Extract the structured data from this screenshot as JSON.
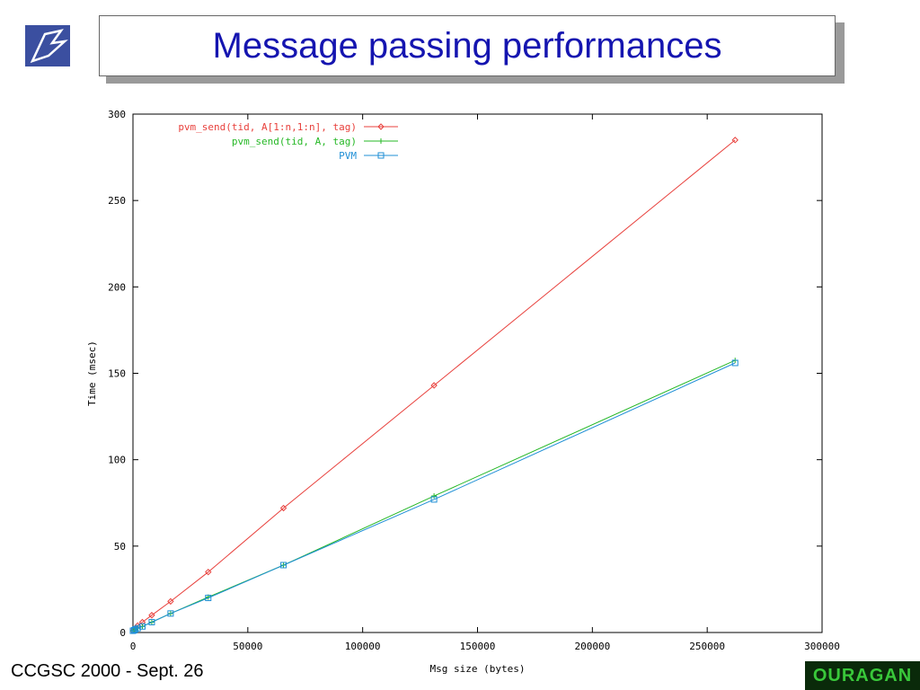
{
  "slide": {
    "title": "Message passing performances",
    "footer": "CCGSC 2000 - Sept. 26",
    "footer_logo": "OURAGAN"
  },
  "chart_data": {
    "type": "line",
    "title": "",
    "xlabel": "Msg size (bytes)",
    "ylabel": "Time (msec)",
    "xlim": [
      0,
      300000
    ],
    "ylim": [
      0,
      300
    ],
    "xticks": [
      0,
      50000,
      100000,
      150000,
      200000,
      250000,
      300000
    ],
    "yticks": [
      0,
      50,
      100,
      150,
      200,
      250,
      300
    ],
    "grid": false,
    "legend_position": "top-left",
    "series": [
      {
        "name": "pvm_send(tid, A[1:n,1:n], tag)",
        "color": "#e8403c",
        "marker": "diamond",
        "x": [
          0,
          512,
          1024,
          2048,
          4096,
          8192,
          16384,
          32768,
          65536,
          131072,
          262144
        ],
        "y": [
          1,
          1.5,
          2.5,
          4,
          6,
          10,
          18,
          35,
          72,
          143,
          285
        ]
      },
      {
        "name": "pvm_send(tid, A, tag)",
        "color": "#26b826",
        "marker": "plus",
        "x": [
          0,
          512,
          1024,
          2048,
          4096,
          8192,
          16384,
          32768,
          65536,
          131072,
          262144
        ],
        "y": [
          1,
          1.3,
          1.8,
          2.5,
          3.5,
          6,
          11,
          20.5,
          39,
          79,
          157.5
        ]
      },
      {
        "name": "PVM",
        "color": "#1f8fd6",
        "marker": "square",
        "x": [
          0,
          512,
          1024,
          2048,
          4096,
          8192,
          16384,
          32768,
          65536,
          131072,
          262144
        ],
        "y": [
          1,
          1.3,
          1.8,
          2.5,
          3.5,
          6,
          11,
          20,
          39,
          77,
          156
        ]
      }
    ]
  }
}
